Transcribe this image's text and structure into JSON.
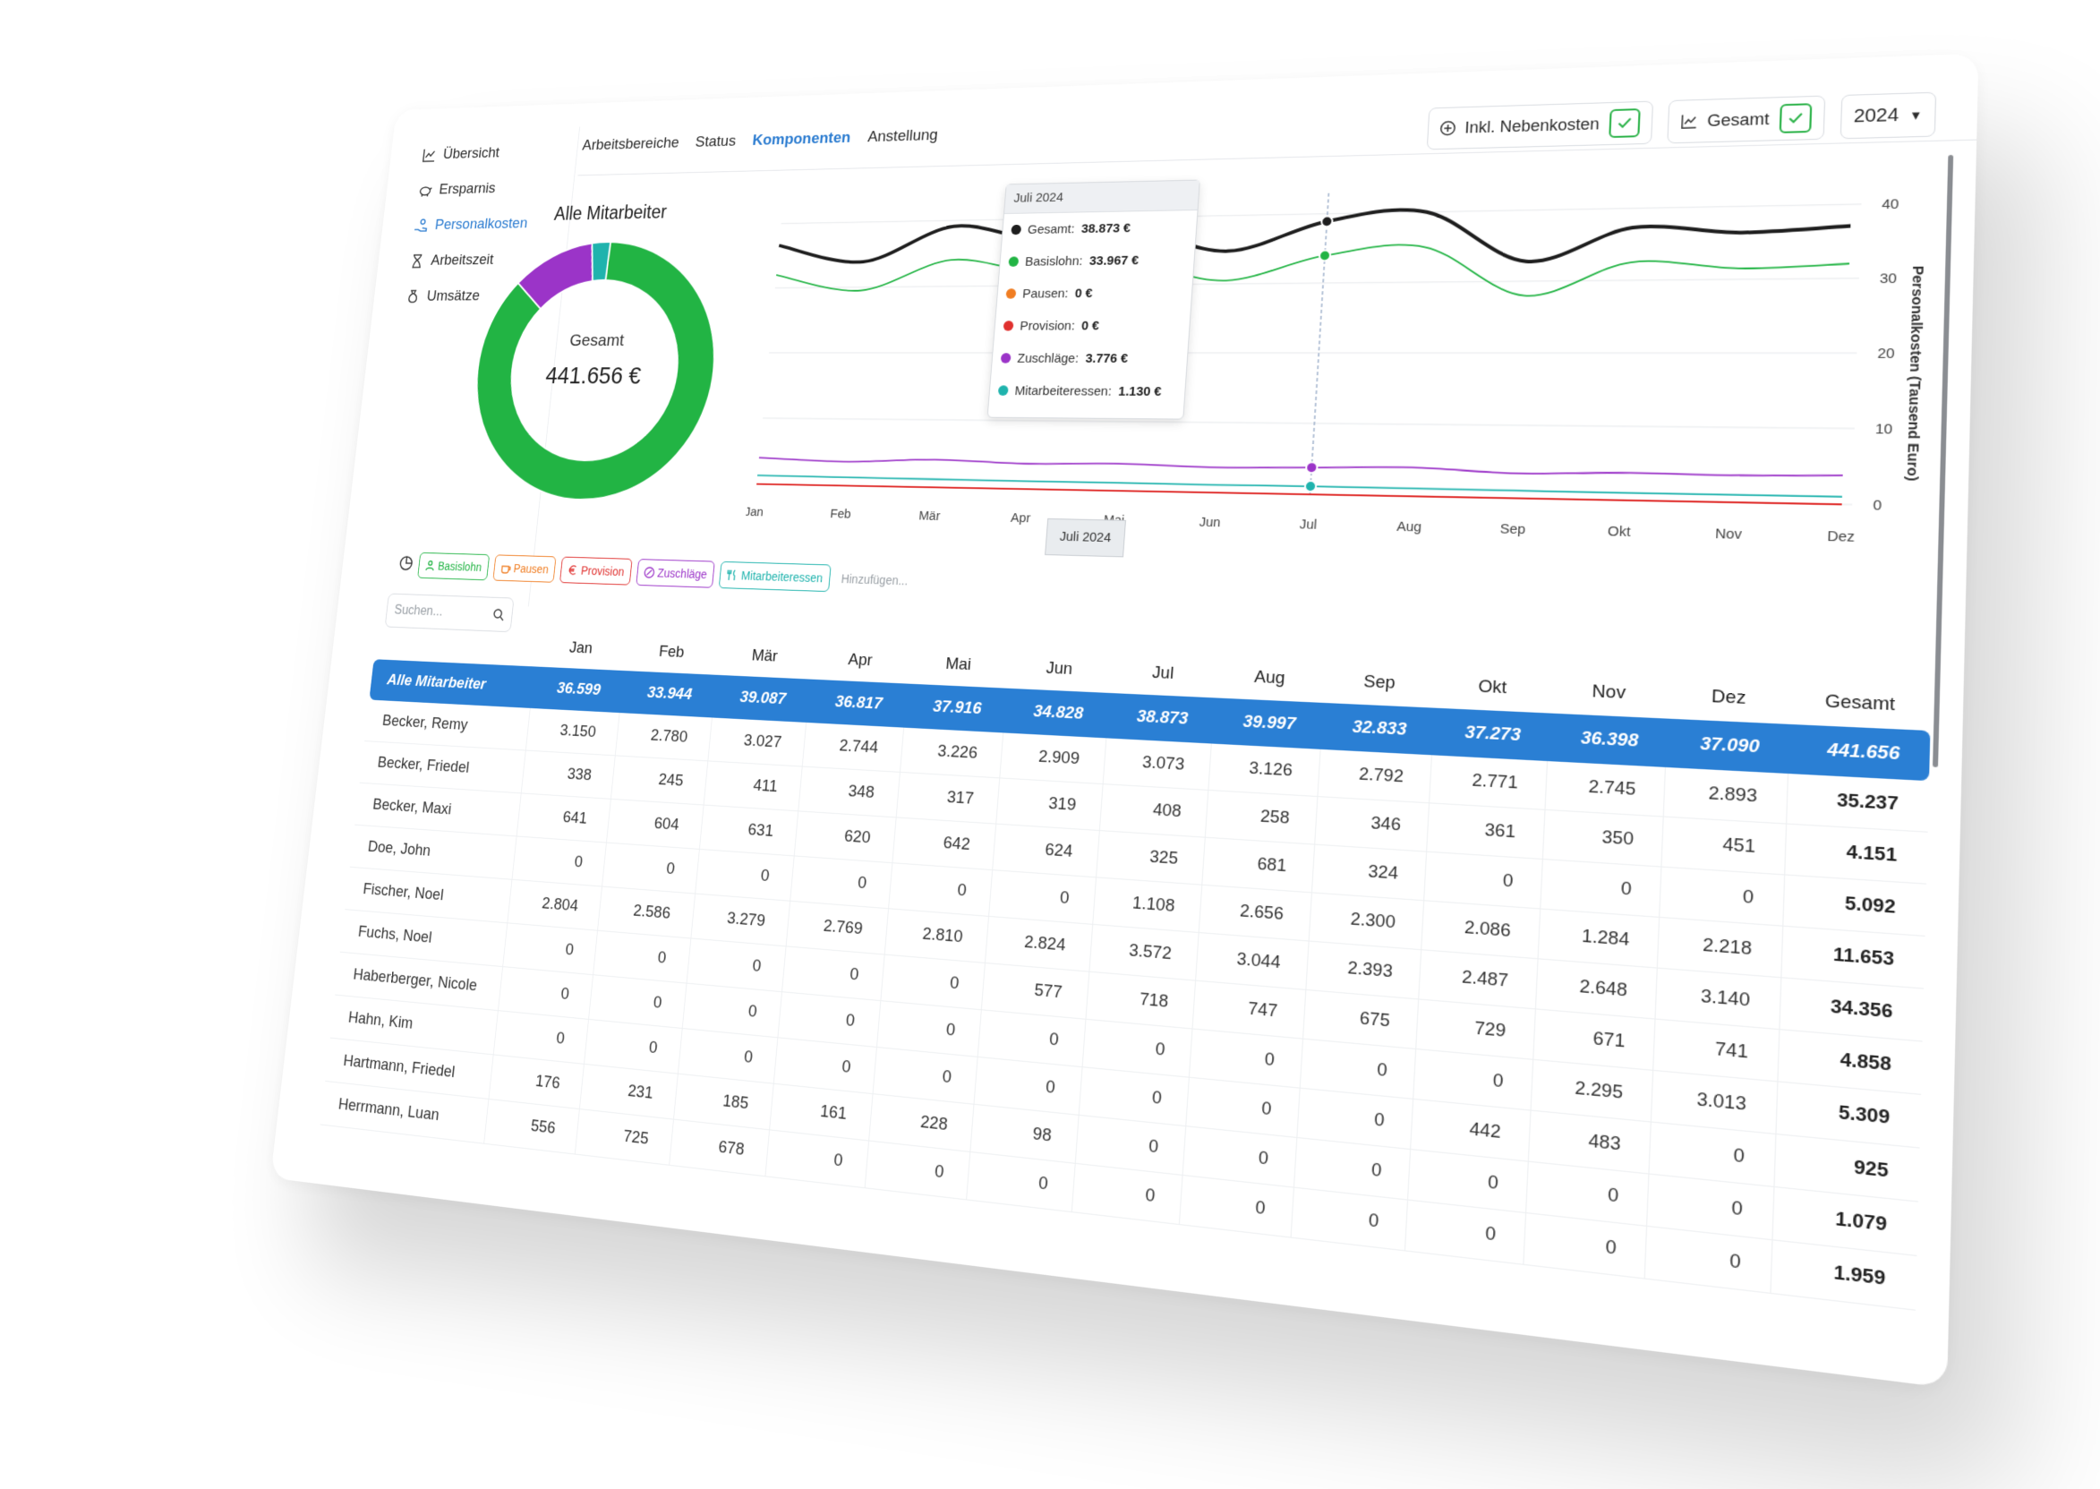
{
  "sidebar": {
    "items": [
      {
        "label": "Übersicht",
        "icon": "line-chart-icon"
      },
      {
        "label": "Ersparnis",
        "icon": "piggy-bank-icon"
      },
      {
        "label": "Personalkosten",
        "icon": "hand-coins-icon",
        "active": true
      },
      {
        "label": "Arbeitszeit",
        "icon": "hourglass-icon"
      },
      {
        "label": "Umsätze",
        "icon": "money-bag-icon"
      }
    ]
  },
  "tabs": [
    {
      "label": "Arbeitsbereiche"
    },
    {
      "label": "Status"
    },
    {
      "label": "Komponenten",
      "active": true
    },
    {
      "label": "Anstellung"
    }
  ],
  "controls": {
    "nebenkosten_label": "Inkl. Nebenkosten",
    "gesamt_label": "Gesamt",
    "year": "2024"
  },
  "donut": {
    "title": "Alle Mitarbeiter",
    "center_label": "Gesamt",
    "center_value": "441.656 €",
    "slices": [
      {
        "name": "Basislohn",
        "share": 0.865,
        "color": "#22b444"
      },
      {
        "name": "Zuschläge",
        "share": 0.11,
        "color": "#9b34c8"
      },
      {
        "name": "Mitarbeiteressen",
        "share": 0.025,
        "color": "#1fb3ad"
      }
    ]
  },
  "tooltip": {
    "title": "Juli 2024",
    "rows": [
      {
        "label": "Gesamt:",
        "value": "38.873 €",
        "color": "#1e1e1e"
      },
      {
        "label": "Basislohn:",
        "value": "33.967 €",
        "color": "#22b444"
      },
      {
        "label": "Pausen:",
        "value": "0 €",
        "color": "#f07d22"
      },
      {
        "label": "Provision:",
        "value": "0 €",
        "color": "#e0312f"
      },
      {
        "label": "Zuschläge:",
        "value": "3.776 €",
        "color": "#9b34c8"
      },
      {
        "label": "Mitarbeiteressen:",
        "value": "1.130 €",
        "color": "#1fb3ad"
      }
    ]
  },
  "x_flag": "Juli 2024",
  "chart_data": {
    "type": "line",
    "categories": [
      "Jan",
      "Feb",
      "Mär",
      "Apr",
      "Mai",
      "Jun",
      "Jul",
      "Aug",
      "Sep",
      "Okt",
      "Nov",
      "Dez"
    ],
    "ylabel": "Personalkosten (Tausend Euro)",
    "ylim": [
      0,
      43
    ],
    "yticks": [
      0,
      10,
      20,
      30,
      40
    ],
    "grid": true,
    "series": [
      {
        "name": "Gesamt",
        "color": "#1e1e1e",
        "values": [
          36.6,
          33.9,
          39.1,
          36.8,
          37.9,
          34.8,
          38.9,
          40.0,
          32.8,
          37.3,
          36.4,
          37.1
        ]
      },
      {
        "name": "Basislohn",
        "color": "#22b444",
        "values": [
          32.0,
          29.5,
          34.0,
          32.0,
          33.0,
          30.5,
          33.967,
          35.0,
          28.0,
          32.5,
          31.5,
          32.0
        ]
      },
      {
        "name": "Pausen",
        "color": "#f07d22",
        "values": [
          0,
          0,
          0,
          0,
          0,
          0,
          0,
          0,
          0,
          0,
          0,
          0
        ]
      },
      {
        "name": "Provision",
        "color": "#e0312f",
        "values": [
          0,
          0,
          0,
          0,
          0,
          0,
          0,
          0,
          0,
          0,
          0,
          0
        ]
      },
      {
        "name": "Zuschläge",
        "color": "#9b34c8",
        "values": [
          4.0,
          3.6,
          4.1,
          3.7,
          3.9,
          3.6,
          3.776,
          4.0,
          3.4,
          3.7,
          3.6,
          3.8
        ]
      },
      {
        "name": "Mitarbeiteressen",
        "color": "#1fb3ad",
        "values": [
          1.3,
          1.25,
          1.2,
          1.15,
          1.15,
          1.1,
          1.13,
          1.1,
          1.05,
          1.0,
          1.0,
          1.0
        ]
      }
    ],
    "highlight_index": 6
  },
  "chips": [
    {
      "label": "Basislohn",
      "color": "#22b444",
      "icon": "person-icon"
    },
    {
      "label": "Pausen",
      "color": "#f07d22",
      "icon": "coffee-icon"
    },
    {
      "label": "Provision",
      "color": "#e0312f",
      "icon": "euro-icon"
    },
    {
      "label": "Zuschläge",
      "color": "#9b34c8",
      "icon": "percent-icon"
    },
    {
      "label": "Mitarbeiteressen",
      "color": "#1fb3ad",
      "icon": "cutlery-icon"
    }
  ],
  "add_label": "Hinzufügen...",
  "search_placeholder": "Suchen...",
  "table": {
    "columns": [
      "Jan",
      "Feb",
      "Mär",
      "Apr",
      "Mai",
      "Jun",
      "Jul",
      "Aug",
      "Sep",
      "Okt",
      "Nov",
      "Dez",
      "Gesamt"
    ],
    "rows": [
      {
        "name": "Alle Mitarbeiter",
        "values": [
          "36.599",
          "33.944",
          "39.087",
          "36.817",
          "37.916",
          "34.828",
          "38.873",
          "39.997",
          "32.833",
          "37.273",
          "36.398",
          "37.090"
        ],
        "total": "441.656",
        "highlight": true
      },
      {
        "name": "Becker, Remy",
        "values": [
          "3.150",
          "2.780",
          "3.027",
          "2.744",
          "3.226",
          "2.909",
          "3.073",
          "3.126",
          "2.792",
          "2.771",
          "2.745",
          "2.893"
        ],
        "total": "35.237"
      },
      {
        "name": "Becker, Friedel",
        "values": [
          "338",
          "245",
          "411",
          "348",
          "317",
          "319",
          "408",
          "258",
          "346",
          "361",
          "350",
          "451"
        ],
        "total": "4.151"
      },
      {
        "name": "Becker, Maxi",
        "values": [
          "641",
          "604",
          "631",
          "620",
          "642",
          "624",
          "325",
          "681",
          "324",
          "0",
          "0",
          "0"
        ],
        "total": "5.092"
      },
      {
        "name": "Doe, John",
        "values": [
          "0",
          "0",
          "0",
          "0",
          "0",
          "0",
          "1.108",
          "2.656",
          "2.300",
          "2.086",
          "1.284",
          "2.218"
        ],
        "total": "11.653"
      },
      {
        "name": "Fischer, Noel",
        "values": [
          "2.804",
          "2.586",
          "3.279",
          "2.769",
          "2.810",
          "2.824",
          "3.572",
          "3.044",
          "2.393",
          "2.487",
          "2.648",
          "3.140"
        ],
        "total": "34.356"
      },
      {
        "name": "Fuchs, Noel",
        "values": [
          "0",
          "0",
          "0",
          "0",
          "0",
          "577",
          "718",
          "747",
          "675",
          "729",
          "671",
          "741"
        ],
        "total": "4.858"
      },
      {
        "name": "Haberberger, Nicole",
        "values": [
          "0",
          "0",
          "0",
          "0",
          "0",
          "0",
          "0",
          "0",
          "0",
          "0",
          "2.295",
          "3.013"
        ],
        "total": "5.309"
      },
      {
        "name": "Hahn, Kim",
        "values": [
          "0",
          "0",
          "0",
          "0",
          "0",
          "0",
          "0",
          "0",
          "0",
          "442",
          "483",
          "0"
        ],
        "total": "925"
      },
      {
        "name": "Hartmann, Friedel",
        "values": [
          "176",
          "231",
          "185",
          "161",
          "228",
          "98",
          "0",
          "0",
          "0",
          "0",
          "0",
          "0"
        ],
        "total": "1.079"
      },
      {
        "name": "Herrmann, Luan",
        "values": [
          "556",
          "725",
          "678",
          "0",
          "0",
          "0",
          "0",
          "0",
          "0",
          "0",
          "0",
          "0"
        ],
        "total": "1.959"
      }
    ]
  }
}
